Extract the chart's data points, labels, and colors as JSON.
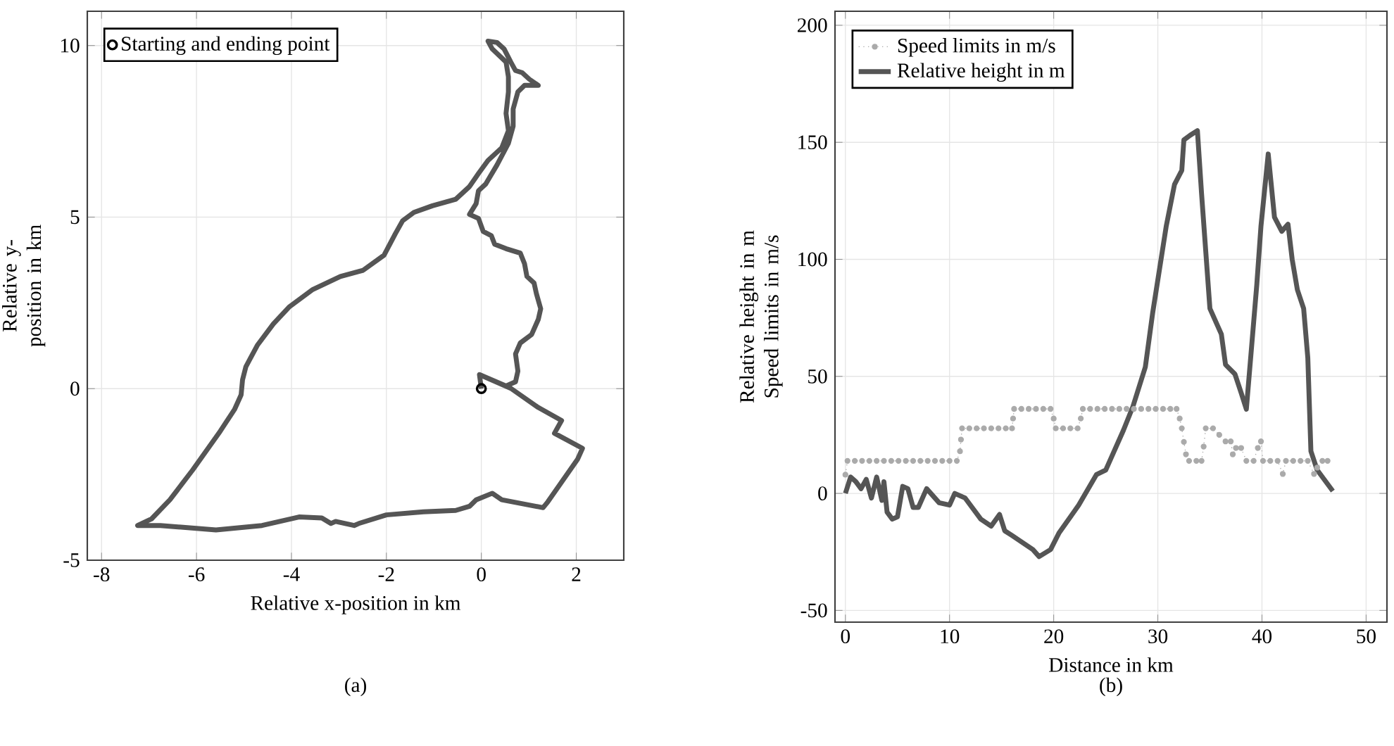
{
  "chart_data": [
    {
      "type": "line",
      "xlabel": "Relative x-position in km",
      "ylabel": "Relative y-position in km",
      "annotations": [
        "(a)"
      ],
      "xlim": [
        -8.3,
        3
      ],
      "ylim": [
        -5,
        11
      ],
      "xticks": [
        -8,
        -6,
        -4,
        -2,
        0,
        2
      ],
      "yticks": [
        -5,
        0,
        5,
        10
      ],
      "grid": true,
      "legend": "top left",
      "series": [
        {
          "color": "#555555",
          "x": [
            -0.04,
            0.52,
            0.72,
            0.77,
            0.72,
            0.82,
            1.06,
            1.2,
            1.25,
            1.16,
            1.11,
            0.96,
            0.91,
            0.82,
            0.52,
            0.28,
            0.21,
            0.04,
            -0.06,
            -0.25,
            -0.11,
            -0.06,
            0.09,
            0.33,
            0.57,
            0.67,
            0.67,
            0.77,
            0.91,
            1.2,
            1.01,
            0.86,
            0.72,
            0.62,
            0.48,
            0.33,
            0.14,
            0.23,
            0.52,
            0.57,
            0.57,
            0.52,
            0.57,
            0.43,
            0.14,
            -0.06,
            -0.25,
            -0.54,
            -1.03,
            -1.42,
            -1.66,
            -1.81,
            -2.05,
            -2.49,
            -2.97,
            -3.55,
            -4.04,
            -4.38,
            -4.72,
            -4.96,
            -5.03,
            -5.06,
            -5.2,
            -5.5,
            -6.08,
            -6.56,
            -6.95,
            -7.24,
            -6.76,
            -5.59,
            -4.62,
            -3.84,
            -3.36,
            -3.17,
            -3.07,
            -2.68,
            -2.58,
            -2.0,
            -1.22,
            -0.54,
            -0.25,
            -0.11,
            0.23,
            0.43,
            1.3,
            1.4,
            2.03,
            2.13,
            1.54,
            1.69,
            1.2,
            0.62,
            -0.04,
            0.0
          ],
          "values": [
            0.41,
            0.08,
            0.2,
            0.51,
            1.01,
            1.33,
            1.58,
            2.02,
            2.33,
            2.77,
            3.08,
            3.27,
            3.64,
            3.95,
            4.08,
            4.21,
            4.46,
            4.58,
            4.96,
            5.08,
            5.39,
            5.77,
            5.96,
            6.52,
            7.15,
            7.65,
            8.15,
            8.65,
            8.84,
            8.84,
            9.02,
            9.21,
            9.27,
            9.52,
            9.9,
            10.09,
            10.13,
            9.9,
            9.52,
            9.09,
            8.65,
            8.02,
            7.52,
            7.02,
            6.65,
            6.27,
            5.89,
            5.52,
            5.33,
            5.14,
            4.89,
            4.52,
            3.89,
            3.45,
            3.27,
            2.89,
            2.39,
            1.89,
            1.26,
            0.64,
            0.26,
            -0.18,
            -0.61,
            -1.24,
            -2.37,
            -3.24,
            -3.8,
            -3.99,
            -3.99,
            -4.12,
            -3.99,
            -3.74,
            -3.77,
            -3.93,
            -3.87,
            -3.99,
            -3.93,
            -3.68,
            -3.59,
            -3.55,
            -3.43,
            -3.24,
            -3.05,
            -3.24,
            -3.47,
            -3.3,
            -2.05,
            -1.74,
            -1.3,
            -0.93,
            -0.55,
            0.01,
            0.41,
            0.0
          ]
        },
        {
          "name": "Starting and ending point",
          "type": "scatter",
          "marker": "circle",
          "color": "#000000",
          "x": [
            0
          ],
          "values": [
            0
          ]
        }
      ]
    },
    {
      "type": "line",
      "xlabel": "Distance in km",
      "ylabel": "Relative height in m Speed limits in m/s",
      "annotations": [
        "(b)"
      ],
      "xlim": [
        -1,
        52
      ],
      "ylim": [
        -55,
        206
      ],
      "xticks": [
        0,
        10,
        20,
        30,
        40,
        50
      ],
      "yticks": [
        -50,
        0,
        50,
        100,
        150,
        200
      ],
      "grid": true,
      "legend": "top left",
      "series": [
        {
          "name": "Speed limits in m/s",
          "color": "#aaaaaa",
          "marker": "circle",
          "line_style": "dotted",
          "x": [
            0,
            0.2,
            0.9,
            1.6,
            2.3,
            3.0,
            3.7,
            4.4,
            5.1,
            5.8,
            6.5,
            7.2,
            7.9,
            8.6,
            9.3,
            10.0,
            10.7,
            11.0,
            11.1,
            11.2,
            11.9,
            12.6,
            13.3,
            14.0,
            14.7,
            15.4,
            16.0,
            16.1,
            16.2,
            16.9,
            17.6,
            18.3,
            19.0,
            19.7,
            20.0,
            20.2,
            20.9,
            21.6,
            22.3,
            22.6,
            22.8,
            23.5,
            24.2,
            24.9,
            25.6,
            26.3,
            27.0,
            27.7,
            28.4,
            29.1,
            29.8,
            30.5,
            31.2,
            31.8,
            32.1,
            32.3,
            32.5,
            32.7,
            33.0,
            33.7,
            34.2,
            34.4,
            34.6,
            35.3,
            35.9,
            36.5,
            37.0,
            37.2,
            37.5,
            38.0,
            38.5,
            39.2,
            39.6,
            39.9,
            40.1,
            40.8,
            41.5,
            42.0,
            42.3,
            43.0,
            43.7,
            44.4,
            45.0,
            45.3,
            45.8,
            46.3
          ],
          "values": [
            8,
            13.9,
            13.9,
            13.9,
            13.9,
            13.9,
            13.9,
            13.9,
            13.9,
            13.9,
            13.9,
            13.9,
            13.9,
            13.9,
            13.9,
            13.9,
            13.9,
            18,
            23,
            27.8,
            27.8,
            27.8,
            27.8,
            27.8,
            27.8,
            27.8,
            27.8,
            32,
            36.1,
            36.1,
            36.1,
            36.1,
            36.1,
            36.1,
            32,
            27.8,
            27.8,
            27.8,
            27.8,
            32,
            36.1,
            36.1,
            36.1,
            36.1,
            36.1,
            36.1,
            36.1,
            36.1,
            36.1,
            36.1,
            36.1,
            36.1,
            36.1,
            36.1,
            32,
            27.8,
            22,
            16.7,
            13.9,
            13.9,
            13.9,
            20,
            27.8,
            27.8,
            25,
            22.2,
            22.2,
            16.7,
            19.4,
            19.4,
            13.9,
            13.9,
            19.4,
            22.2,
            13.9,
            13.9,
            13.9,
            8.3,
            13.9,
            13.9,
            13.9,
            13.9,
            8.3,
            11,
            13.9,
            13.9
          ]
        },
        {
          "name": "Relative height in m",
          "color": "#555555",
          "x": [
            0,
            0.5,
            1,
            1.5,
            2,
            2.5,
            3,
            3.5,
            3.7,
            4,
            4.5,
            5,
            5.5,
            6,
            6.5,
            7,
            7.8,
            9,
            10,
            10.5,
            11.5,
            13,
            14,
            14.8,
            15.3,
            16,
            17,
            18,
            18.6,
            19.7,
            20.5,
            22.4,
            24.1,
            25,
            26.7,
            27.6,
            28.8,
            29.5,
            30.8,
            31.6,
            32.3,
            32.5,
            33.1,
            33.8,
            34.2,
            35,
            36.1,
            36.5,
            37.4,
            38,
            38.5,
            39.5,
            39.9,
            40.6,
            41.2,
            41.9,
            42.5,
            42.9,
            43.4,
            44,
            44.4,
            44.7,
            45.3,
            46.8
          ],
          "values": [
            0,
            7,
            5,
            2,
            6,
            -2,
            7,
            -3,
            5,
            -8,
            -11,
            -10,
            3,
            2,
            -6,
            -6,
            2,
            -4,
            -5,
            0,
            -2,
            -11,
            -14,
            -9,
            -16,
            -18,
            -21,
            -24,
            -27,
            -24,
            -17,
            -5,
            8,
            10,
            27,
            37,
            54,
            77,
            114,
            132,
            138,
            151,
            153,
            155,
            128,
            79,
            68,
            55,
            51,
            43,
            36,
            89,
            114,
            145,
            118,
            112,
            115,
            100,
            87,
            79,
            58,
            18,
            10,
            1
          ]
        }
      ]
    }
  ]
}
